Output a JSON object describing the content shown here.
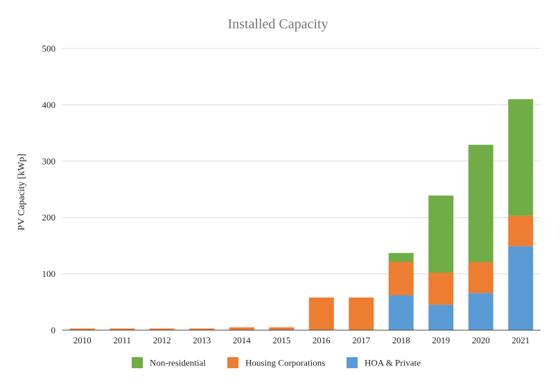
{
  "chart_data": {
    "type": "bar",
    "stacked": true,
    "title": "Installed Capacity",
    "xlabel": "",
    "ylabel": "PV Capacity [kWp]",
    "ylim": [
      0,
      500
    ],
    "yticks": [
      0,
      100,
      200,
      300,
      400,
      500
    ],
    "grid": true,
    "legend_position": "bottom",
    "categories": [
      "2010",
      "2011",
      "2012",
      "2013",
      "2014",
      "2015",
      "2016",
      "2017",
      "2018",
      "2019",
      "2020",
      "2021"
    ],
    "series": [
      {
        "name": "HOA & Private",
        "color": "#5b9bd5",
        "values": [
          0,
          0,
          0,
          0,
          0,
          0,
          0,
          0,
          62,
          45,
          66,
          149
        ]
      },
      {
        "name": "Housing Corporations",
        "color": "#ed7d31",
        "values": [
          3,
          3,
          3,
          3,
          5,
          5,
          58,
          58,
          59,
          57,
          55,
          54
        ]
      },
      {
        "name": "Non-residential",
        "color": "#70ad47",
        "values": [
          0,
          0,
          0,
          0,
          0,
          0,
          0,
          0,
          16,
          137,
          208,
          207
        ]
      }
    ],
    "legend_order": [
      "Non-residential",
      "Housing Corporations",
      "HOA & Private"
    ]
  }
}
